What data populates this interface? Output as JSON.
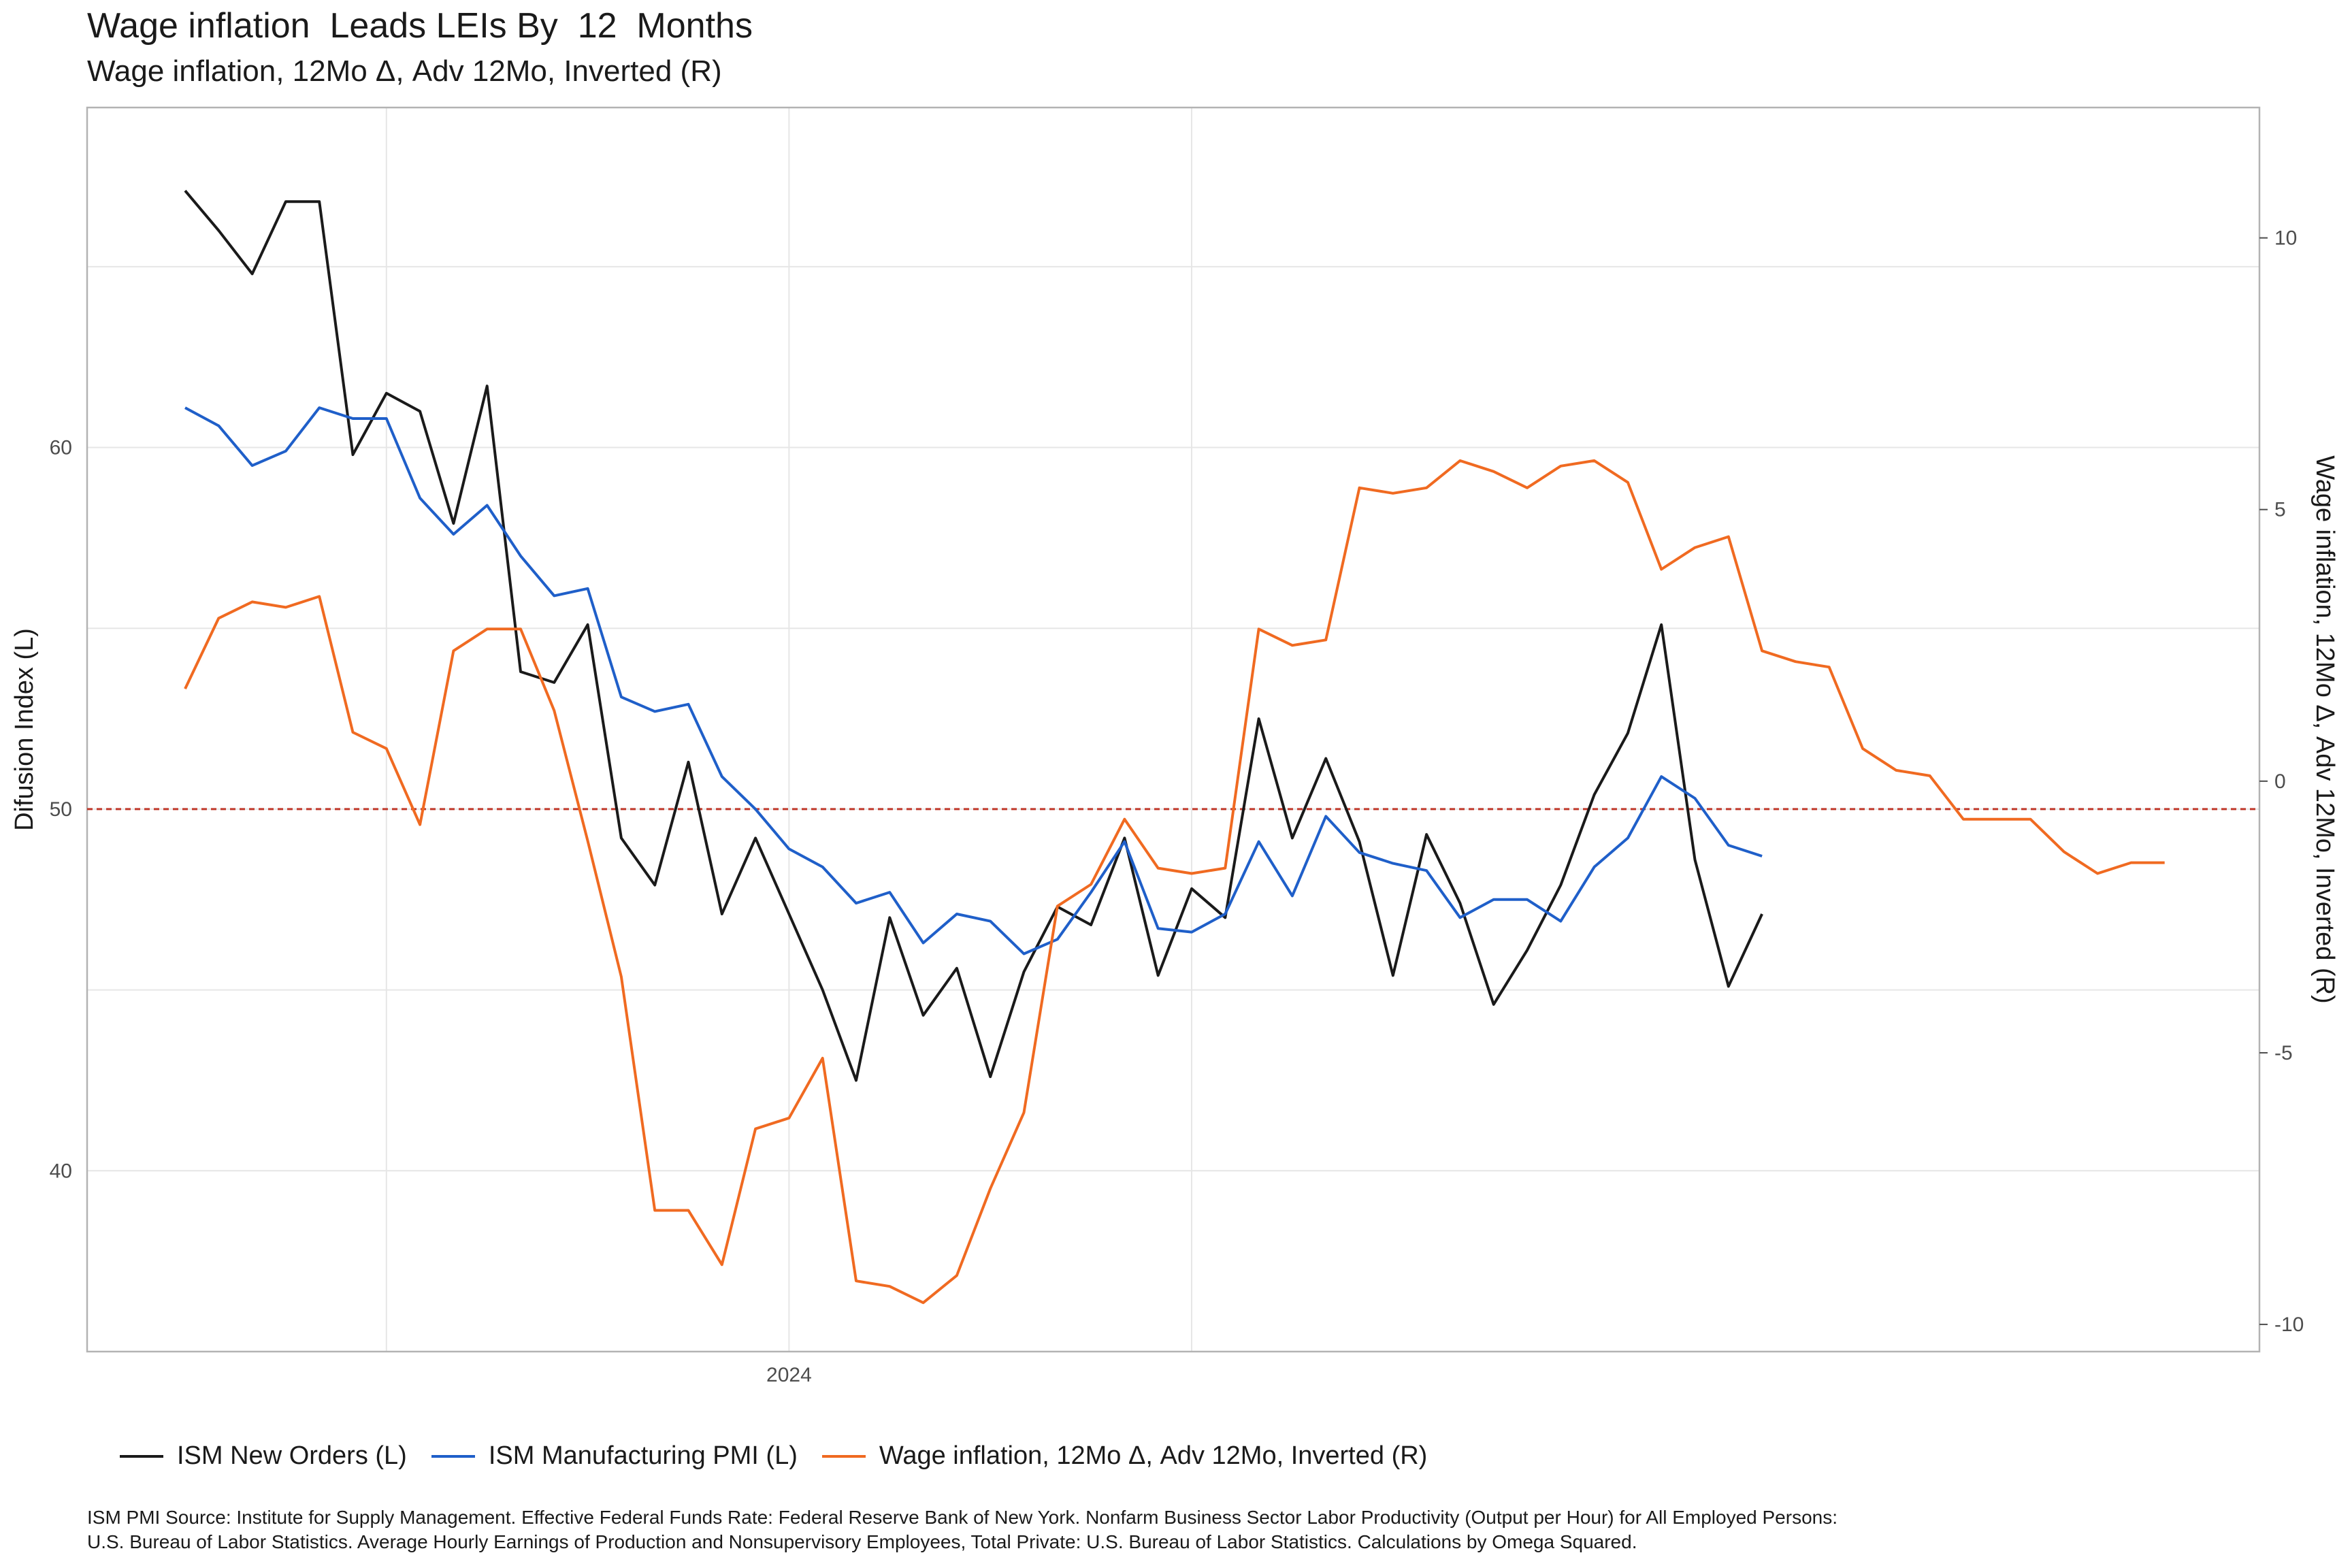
{
  "title": "Wage inflation  Leads LEIs By  12  Months",
  "subtitle": "Wage inflation, 12Mo Δ, Adv 12Mo, Inverted (R)",
  "caption": [
    "ISM PMI Source: Institute for Supply Management. Effective Federal Funds Rate: Federal Reserve Bank of New York. Nonfarm Business Sector Labor Productivity (Output per Hour) for All Employed Persons:",
    "U.S. Bureau of Labor Statistics. Average Hourly Earnings of Production and Nonsupervisory Employees, Total Private: U.S. Bureau of Labor Statistics. Calculations by Omega Squared."
  ],
  "colors": {
    "new_orders": "#1a1a1a",
    "pmi": "#1f5fc9",
    "wage": "#f06a21",
    "reference_line": "#c0392b",
    "grid": "#e6e6e6"
  },
  "chart_data": {
    "type": "line",
    "x_start": "2022-07",
    "x_ticks": [
      "2024"
    ],
    "left_axis": {
      "label": "Difusion Index (L)",
      "range": [
        35,
        69.4
      ],
      "ticks": [
        40,
        50,
        60
      ]
    },
    "right_axis": {
      "label": "Wage inflation, 12Mo Δ, Adv 12Mo, Inverted (R)",
      "range": [
        -10.5,
        12.4
      ],
      "ticks": [
        10,
        5,
        0,
        -5,
        -10
      ]
    },
    "reference_line": {
      "axis": "left",
      "value": 50,
      "style": "dashed"
    },
    "grid": true,
    "legend_position": "bottom",
    "series": [
      {
        "name": "ISM New Orders (L)",
        "axis": "left",
        "color_key": "new_orders",
        "values": [
          67.1,
          66.0,
          64.8,
          66.8,
          66.8,
          59.8,
          61.5,
          61.0,
          57.9,
          61.7,
          53.8,
          53.5,
          55.1,
          49.2,
          47.9,
          51.3,
          47.1,
          49.2,
          47.1,
          45.0,
          42.5,
          47.0,
          44.3,
          45.6,
          42.6,
          45.5,
          47.3,
          46.8,
          49.2,
          45.4,
          47.8,
          47.0,
          52.5,
          49.2,
          51.4,
          49.1,
          45.4,
          49.3,
          47.4,
          44.6,
          46.1,
          47.9,
          50.4,
          52.1,
          55.1,
          48.6,
          45.1,
          47.1
        ]
      },
      {
        "name": "ISM Manufacturing PMI (L)",
        "axis": "left",
        "color_key": "pmi",
        "values": [
          61.1,
          60.6,
          59.5,
          59.9,
          61.1,
          60.8,
          60.8,
          58.6,
          57.6,
          58.4,
          57.0,
          55.9,
          56.1,
          53.1,
          52.7,
          52.9,
          50.9,
          50.0,
          48.9,
          48.4,
          47.4,
          47.7,
          46.3,
          47.1,
          46.9,
          46.0,
          46.4,
          47.7,
          49.1,
          46.7,
          46.6,
          47.1,
          49.1,
          47.6,
          49.8,
          48.8,
          48.5,
          48.3,
          47.0,
          47.5,
          47.5,
          46.9,
          48.4,
          49.2,
          50.9,
          50.3,
          49.0,
          48.7
        ]
      },
      {
        "name": "Wage inflation, 12Mo Δ, Adv 12Mo, Inverted (R)",
        "axis": "right",
        "color_key": "wage",
        "values": [
          1.7,
          3.0,
          3.3,
          3.2,
          3.4,
          0.9,
          0.6,
          -0.8,
          2.4,
          2.8,
          2.8,
          1.3,
          -1.1,
          -3.6,
          -7.9,
          -7.9,
          -8.9,
          -6.4,
          -6.2,
          -5.1,
          -9.2,
          -9.3,
          -9.6,
          -9.1,
          -7.5,
          -6.1,
          -2.3,
          -1.9,
          -0.7,
          -1.6,
          -1.7,
          -1.6,
          2.8,
          2.5,
          2.6,
          5.4,
          5.3,
          5.4,
          5.9,
          5.7,
          5.4,
          5.8,
          5.9,
          5.5,
          3.9,
          4.3,
          4.5,
          2.4,
          2.2,
          2.1,
          0.6,
          0.2,
          0.1,
          -0.7,
          -0.7,
          -0.7,
          -1.3,
          -1.7,
          -1.5,
          -1.5
        ]
      }
    ]
  }
}
